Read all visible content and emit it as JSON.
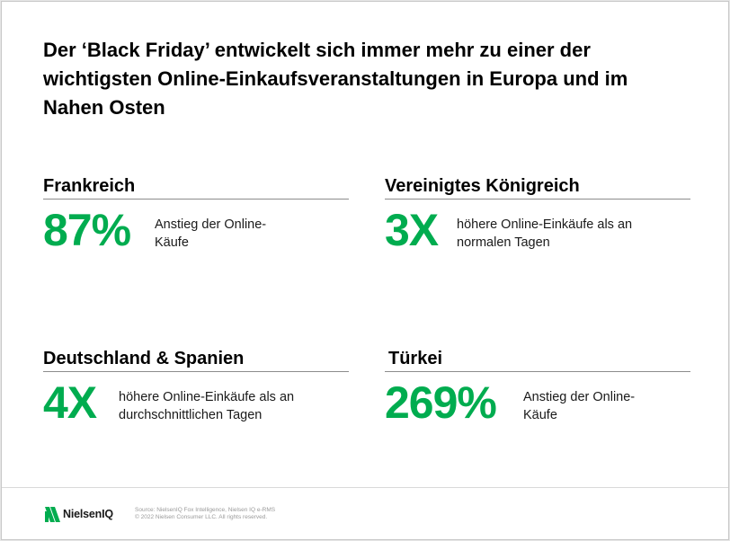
{
  "slide": {
    "title": "Der ‘Black Friday’ entwickelt sich immer mehr zu einer der wichtigsten Online-Einkaufsveranstaltungen in Europa und im Nahen Osten",
    "accent_color": "#00ac4f",
    "stats": [
      {
        "region": "Frankreich",
        "value": "87%",
        "description": "Anstieg der Online-Käufe"
      },
      {
        "region": "Vereinigtes Königreich",
        "value": "3X",
        "description": "höhere Online-Einkäufe als an normalen Tagen"
      },
      {
        "region": "Deutschland & Spanien",
        "value": "4X",
        "description": "höhere Online-Einkäufe als an durchschnittlichen Tagen"
      },
      {
        "region": "Türkei",
        "value": "269%",
        "description": "Anstieg der Online-Käufe"
      }
    ]
  },
  "footer": {
    "logo_icon": "nielseniq-logo-mark",
    "logo_text": "NielsenIQ",
    "source_line": "Source: NielsenIQ Fox Intelligence, Nielsen IQ e-RMS",
    "copyright_line": "© 2022 Nielsen Consumer LLC. All rights reserved."
  }
}
